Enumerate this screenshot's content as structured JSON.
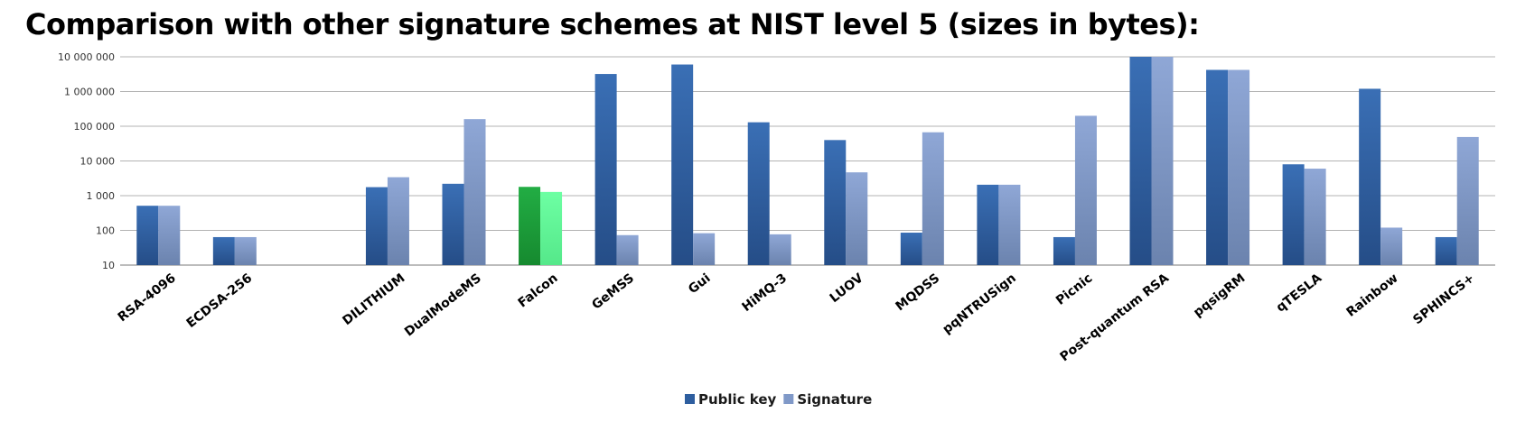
{
  "chart_data": {
    "type": "bar",
    "title": "Comparison with other signature schemes at NIST level 5 (sizes in bytes):",
    "xlabel": "",
    "ylabel": "",
    "yscale": "log",
    "ylim": [
      10,
      10000000
    ],
    "yticks": [
      10,
      100,
      1000,
      10000,
      100000,
      1000000,
      10000000
    ],
    "ytick_labels": [
      "10",
      "100",
      "1 000",
      "10 000",
      "100 000",
      "1 000 000",
      "10 000 000"
    ],
    "grid": true,
    "legend_position": "bottom-center",
    "categories": [
      "RSA-4096",
      "ECDSA-256",
      "",
      "DILITHIUM",
      "DualModeMS",
      "Falcon",
      "GeMSS",
      "Gui",
      "HiMQ-3",
      "LUOV",
      "MQDSS",
      "pqNTRUSign",
      "Picnic",
      "Post-quantum RSA",
      "pqsigRM",
      "qTESLA",
      "Rainbow",
      "SPHINCS+"
    ],
    "series": [
      {
        "name": "Public key",
        "color": "#2e5e9f",
        "values": [
          512,
          64,
          null,
          1760,
          2200,
          1793,
          3200000,
          6000000,
          130000,
          40000,
          86,
          2065,
          64,
          10000000,
          4200000,
          8000,
          1200000,
          64
        ]
      },
      {
        "name": "Signature",
        "color": "#8099c8",
        "values": [
          512,
          64,
          null,
          3400,
          160000,
          1280,
          73,
          83,
          77,
          4700,
          67000,
          2065,
          200000,
          10000000,
          4200000,
          6000,
          120,
          49000
        ]
      }
    ],
    "highlight": {
      "category": "Falcon",
      "colors": [
        "#1e9e3a",
        "#66ff99"
      ]
    }
  }
}
